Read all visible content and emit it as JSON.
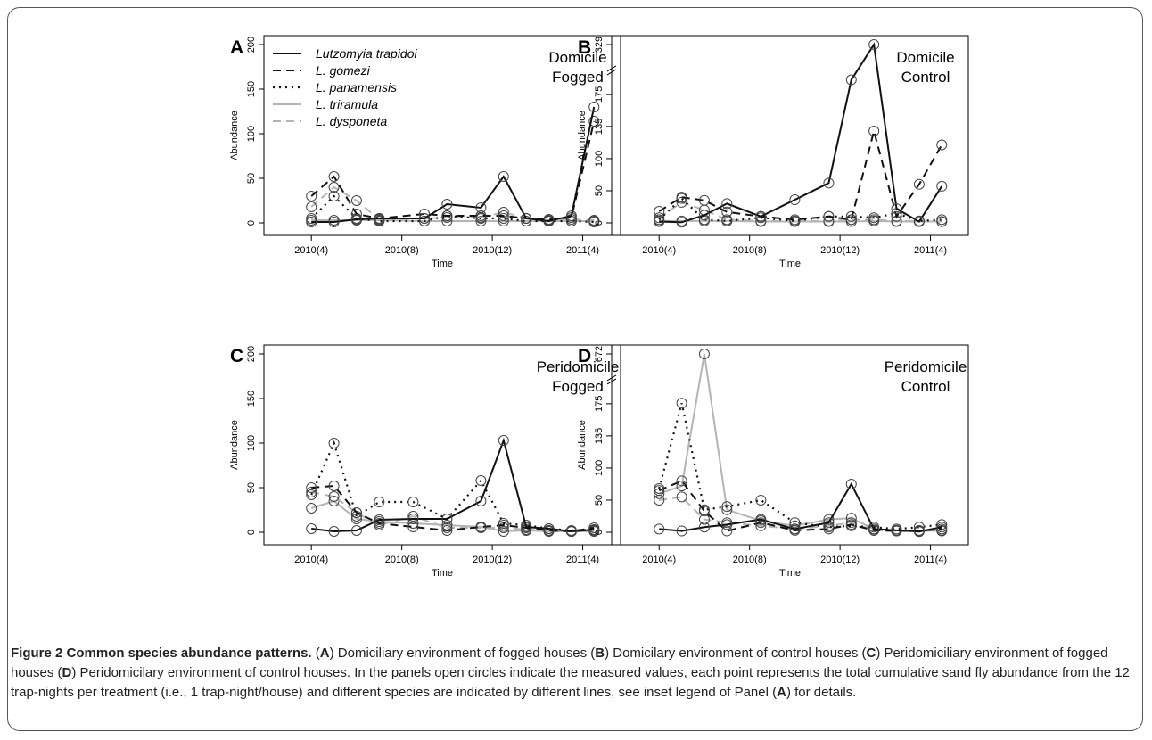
{
  "chart_data": [
    {
      "panel": "A",
      "type": "line",
      "title": "Domicile\nFogged",
      "xlabel": "Time",
      "ylabel": "Abundance",
      "x_ticks": [
        "2010(4)",
        "2010(8)",
        "2010(12)",
        "2011(4)"
      ],
      "y_ticks": [
        "0",
        "50",
        "100",
        "150",
        "200"
      ],
      "ylim": [
        0,
        200
      ],
      "x": [
        4,
        5,
        6,
        7,
        9,
        10,
        11.5,
        12.5,
        13.5,
        14.5,
        15.5,
        16.5
      ],
      "series": [
        {
          "name": "Lutzomyia trapidoi",
          "style": "solid-black",
          "values": [
            1,
            1,
            4,
            5,
            5,
            21,
            17,
            52,
            5,
            2,
            8,
            130
          ]
        },
        {
          "name": "L. gomezi",
          "style": "dashed-black",
          "values": [
            30,
            52,
            10,
            5,
            10,
            8,
            8,
            8,
            5,
            4,
            6,
            114
          ]
        },
        {
          "name": "L. panamensis",
          "style": "dotted-black",
          "values": [
            5,
            30,
            5,
            2,
            2,
            8,
            5,
            5,
            2,
            2,
            2,
            1
          ]
        },
        {
          "name": "L. triramula",
          "style": "solid-gray",
          "values": [
            3,
            3,
            3,
            3,
            2,
            2,
            2,
            2,
            2,
            2,
            2,
            2
          ]
        },
        {
          "name": "L. dysponeta",
          "style": "dashed-gray",
          "values": [
            18,
            40,
            25,
            4,
            5,
            6,
            6,
            12,
            5,
            3,
            4,
            3
          ]
        }
      ]
    },
    {
      "panel": "B",
      "type": "line",
      "title": "Domicile\nControl",
      "xlabel": "Time",
      "ylabel": "Abundance",
      "x_ticks": [
        "2010(4)",
        "2010(8)",
        "2010(12)",
        "2011(4)"
      ],
      "y_ticks": [
        "0",
        "50",
        "100",
        "135",
        "175",
        "329"
      ],
      "broken_axis": true,
      "x": [
        4,
        5,
        6,
        7,
        8.5,
        10,
        11.5,
        12.5,
        13.5,
        14.5,
        15.5,
        16.5
      ],
      "series": [
        {
          "name": "Lutzomyia trapidoi",
          "style": "solid-black",
          "values": [
            2,
            1,
            12,
            30,
            10,
            36,
            62,
            220,
            329,
            22,
            2,
            57
          ]
        },
        {
          "name": "L. gomezi",
          "style": "dashed-black",
          "values": [
            18,
            40,
            35,
            17,
            10,
            5,
            10,
            5,
            130,
            10,
            60,
            115
          ]
        },
        {
          "name": "L. panamensis",
          "style": "dotted-black",
          "values": [
            5,
            38,
            5,
            3,
            8,
            3,
            10,
            10,
            8,
            15,
            3,
            5
          ]
        },
        {
          "name": "L. triramula",
          "style": "solid-gray",
          "values": [
            3,
            3,
            3,
            3,
            2,
            2,
            2,
            2,
            3,
            2,
            2,
            2
          ]
        },
        {
          "name": "L. dysponeta",
          "style": "dashed-gray",
          "values": [
            8,
            32,
            20,
            5,
            3,
            3,
            3,
            5,
            5,
            3,
            3,
            2
          ]
        }
      ]
    },
    {
      "panel": "C",
      "type": "line",
      "title": "Peridomicile\nFogged",
      "xlabel": "Time",
      "ylabel": "Abundance",
      "x_ticks": [
        "2010(4)",
        "2010(8)",
        "2010(12)",
        "2011(4)"
      ],
      "y_ticks": [
        "0",
        "50",
        "100",
        "150",
        "200"
      ],
      "ylim": [
        0,
        200
      ],
      "x": [
        4,
        5,
        6,
        7,
        8.5,
        10,
        11.5,
        12.5,
        13.5,
        14.5,
        15.5,
        16.5
      ],
      "series": [
        {
          "name": "Lutzomyia trapidoi",
          "style": "solid-black",
          "values": [
            4,
            1,
            2,
            14,
            15,
            15,
            35,
            103,
            6,
            4,
            1,
            3
          ]
        },
        {
          "name": "L. gomezi",
          "style": "dashed-black",
          "values": [
            50,
            52,
            22,
            10,
            6,
            2,
            6,
            8,
            5,
            2,
            1,
            5
          ]
        },
        {
          "name": "L. panamensis",
          "style": "dotted-black",
          "values": [
            42,
            100,
            18,
            34,
            34,
            15,
            58,
            10,
            8,
            4,
            2,
            3
          ]
        },
        {
          "name": "L. triramula",
          "style": "solid-gray",
          "values": [
            27,
            35,
            15,
            12,
            10,
            8,
            6,
            1,
            2,
            1,
            1,
            1
          ]
        },
        {
          "name": "L. dysponeta",
          "style": "dashed-gray",
          "values": [
            45,
            40,
            22,
            8,
            18,
            5,
            5,
            5,
            3,
            2,
            1,
            2
          ]
        }
      ]
    },
    {
      "panel": "D",
      "type": "line",
      "title": "Peridomicile\nControl",
      "xlabel": "Time",
      "ylabel": "Abundance",
      "x_ticks": [
        "2010(4)",
        "2010(8)",
        "2010(12)",
        "2011(4)"
      ],
      "y_ticks": [
        "0",
        "50",
        "100",
        "135",
        "175",
        "672"
      ],
      "broken_axis": true,
      "x": [
        4,
        5,
        6,
        7,
        8.5,
        10,
        11.5,
        12.5,
        13.5,
        14.5,
        15.5,
        16.5
      ],
      "series": [
        {
          "name": "Lutzomyia trapidoi",
          "style": "solid-black",
          "values": [
            5,
            2,
            8,
            12,
            20,
            5,
            15,
            75,
            5,
            3,
            1,
            8
          ]
        },
        {
          "name": "L. gomezi",
          "style": "dashed-black",
          "values": [
            65,
            80,
            33,
            2,
            15,
            3,
            5,
            12,
            3,
            2,
            2,
            5
          ]
        },
        {
          "name": "L. panamensis",
          "style": "dotted-black",
          "values": [
            68,
            180,
            35,
            40,
            50,
            15,
            8,
            10,
            8,
            5,
            8,
            12
          ]
        },
        {
          "name": "L. triramula",
          "style": "solid-gray",
          "values": [
            60,
            72,
            672,
            35,
            18,
            10,
            20,
            22,
            5,
            3,
            2,
            3
          ]
        },
        {
          "name": "L. dysponeta",
          "style": "dashed-gray",
          "values": [
            50,
            55,
            20,
            15,
            10,
            5,
            10,
            15,
            3,
            2,
            3,
            2
          ]
        }
      ]
    }
  ],
  "caption": {
    "bold": "Figure 2 Common species abundance patterns.",
    "parts": [
      {
        "t": " (",
        "b": false
      },
      {
        "t": "A",
        "b": true
      },
      {
        "t": ") Domiciliary environment of fogged houses (",
        "b": false
      },
      {
        "t": "B",
        "b": true
      },
      {
        "t": ") Domicilary environment of control houses (",
        "b": false
      },
      {
        "t": "C",
        "b": true
      },
      {
        "t": ") Peridomiciliary environment of fogged houses (",
        "b": false
      },
      {
        "t": "D",
        "b": true
      },
      {
        "t": ") Peridomicilary environment of control houses. In the panels open circles indicate the measured values, each point represents the total cumulative sand fly abundance from the 12 trap-nights per treatment (i.e., 1 trap-night/house) and different species are indicated by different lines, see inset legend of Panel (",
        "b": false
      },
      {
        "t": "A",
        "b": true
      },
      {
        "t": ") for details.",
        "b": false
      }
    ]
  }
}
